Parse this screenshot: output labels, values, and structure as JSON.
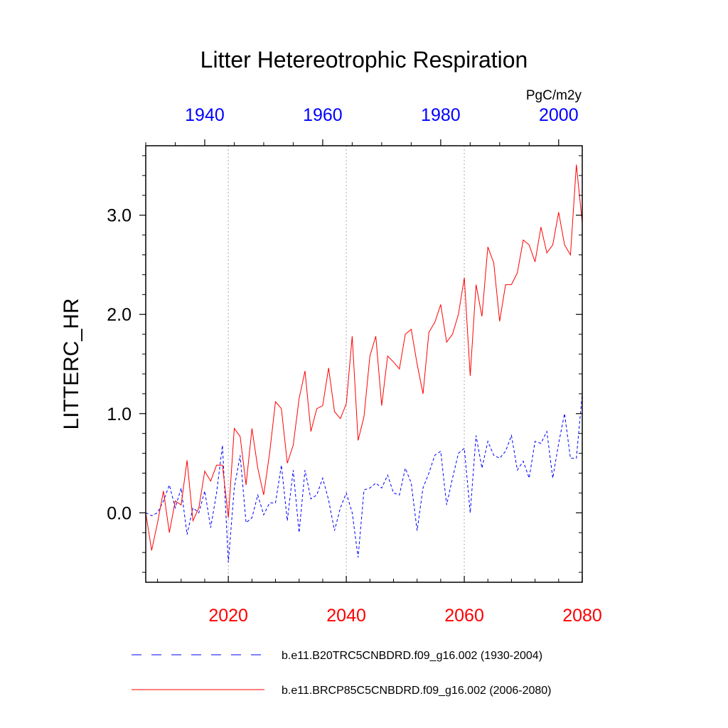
{
  "chart_data": {
    "type": "line",
    "title": "Litter Hetereotrophic Respiration",
    "units_label": "PgC/m2y",
    "ylabel": "LITTERC_HR",
    "ylim": [
      -0.7,
      3.7
    ],
    "yticks": [
      0.0,
      1.0,
      2.0,
      3.0
    ],
    "ytick_labels": [
      "0.0",
      "1.0",
      "2.0",
      "3.0"
    ],
    "yminor_step": 0.2,
    "bottom_axis": {
      "range": [
        2006,
        2080
      ],
      "ticks": [
        2020,
        2040,
        2060,
        2080
      ],
      "tick_labels": [
        "2020",
        "2040",
        "2060",
        "2080"
      ],
      "minor_step": 4,
      "color": "#ff0000"
    },
    "top_axis": {
      "range": [
        1930,
        2004
      ],
      "ticks": [
        1940,
        1960,
        1980,
        2000
      ],
      "tick_labels": [
        "1940",
        "1960",
        "1980",
        "2000"
      ],
      "minor_step": 5,
      "color": "#0000ff"
    },
    "vgrid": [
      2020,
      2040,
      2060
    ],
    "series": [
      {
        "name": "b.e11.B20TRC5CNBDRD.f09_g16.002 (1930-2004)",
        "axis": "top",
        "color": "#0000ff",
        "dash": "dashed",
        "x_start": 1930,
        "values": [
          0.0,
          -0.03,
          0.0,
          0.12,
          0.28,
          0.05,
          0.25,
          -0.22,
          0.05,
          0.0,
          0.22,
          -0.15,
          0.2,
          0.68,
          -0.5,
          0.25,
          0.58,
          -0.1,
          -0.05,
          0.18,
          -0.02,
          0.1,
          0.1,
          0.48,
          -0.08,
          0.43,
          -0.2,
          0.43,
          0.14,
          0.18,
          0.35,
          0.13,
          -0.18,
          0.05,
          0.2,
          0.0,
          -0.45,
          0.23,
          0.25,
          0.3,
          0.25,
          0.38,
          0.2,
          0.18,
          0.45,
          0.3,
          -0.18,
          0.25,
          0.4,
          0.58,
          0.62,
          0.08,
          0.35,
          0.6,
          0.65,
          0.0,
          0.78,
          0.45,
          0.72,
          0.58,
          0.55,
          0.62,
          0.78,
          0.43,
          0.52,
          0.35,
          0.72,
          0.7,
          0.82,
          0.35,
          0.7,
          1.0,
          0.55,
          0.55,
          1.2
        ]
      },
      {
        "name": "b.e11.BRCP85C5CNBDRD.f09_g16.002 (2006-2080)",
        "axis": "bottom",
        "color": "#ff0000",
        "dash": "solid",
        "x_start": 2006,
        "values": [
          0.0,
          -0.38,
          -0.1,
          0.22,
          -0.2,
          0.12,
          0.08,
          0.53,
          -0.08,
          0.05,
          0.42,
          0.32,
          0.48,
          0.48,
          -0.05,
          0.85,
          0.77,
          0.28,
          0.85,
          0.45,
          0.18,
          0.6,
          1.12,
          1.05,
          0.5,
          0.68,
          1.15,
          1.43,
          0.82,
          1.05,
          1.08,
          1.46,
          1.02,
          0.95,
          1.1,
          1.78,
          0.73,
          0.97,
          1.58,
          1.78,
          1.08,
          1.58,
          1.52,
          1.45,
          1.8,
          1.85,
          1.5,
          1.2,
          1.82,
          1.92,
          2.1,
          1.72,
          1.8,
          2.0,
          2.37,
          1.38,
          2.3,
          1.98,
          2.68,
          2.52,
          1.93,
          2.3,
          2.3,
          2.42,
          2.75,
          2.7,
          2.53,
          2.88,
          2.62,
          2.7,
          3.03,
          2.7,
          2.6,
          3.51,
          2.92
        ]
      }
    ],
    "legend": [
      {
        "label": "b.e11.B20TRC5CNBDRD.f09_g16.002 (1930-2004)",
        "color": "#0000ff",
        "dash": "dashed"
      },
      {
        "label": "b.e11.BRCP85C5CNBDRD.f09_g16.002 (2006-2080)",
        "color": "#ff0000",
        "dash": "solid"
      }
    ],
    "legend_position": "bottom"
  }
}
